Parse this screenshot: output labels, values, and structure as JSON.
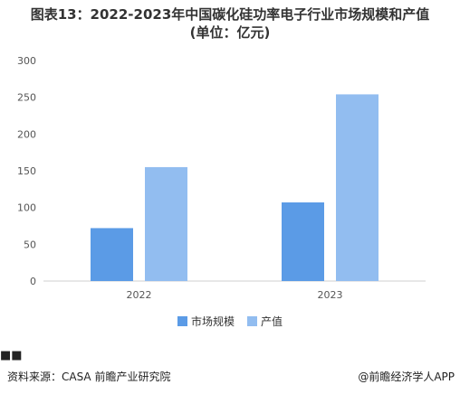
{
  "title": "图表13：2022-2023年中国碳化硅功率电子行业市场规模和产值",
  "subtitle": "(单位：亿元)",
  "chart_data": {
    "type": "bar",
    "categories": [
      "2022",
      "2023"
    ],
    "series": [
      {
        "name": "市场规模",
        "values": [
          72,
          107
        ],
        "color": "#5b9be6"
      },
      {
        "name": "产值",
        "values": [
          155,
          254
        ],
        "color": "#92bdf0"
      }
    ],
    "ylim": [
      0,
      300
    ],
    "yticks": [
      "0",
      "50",
      "100",
      "150",
      "200",
      "250",
      "300"
    ],
    "grid": false,
    "legend_position": "bottom"
  },
  "footer": {
    "source": "资料来源：CASA 前瞻产业研究院",
    "brand": "@前瞻经济学人APP"
  }
}
